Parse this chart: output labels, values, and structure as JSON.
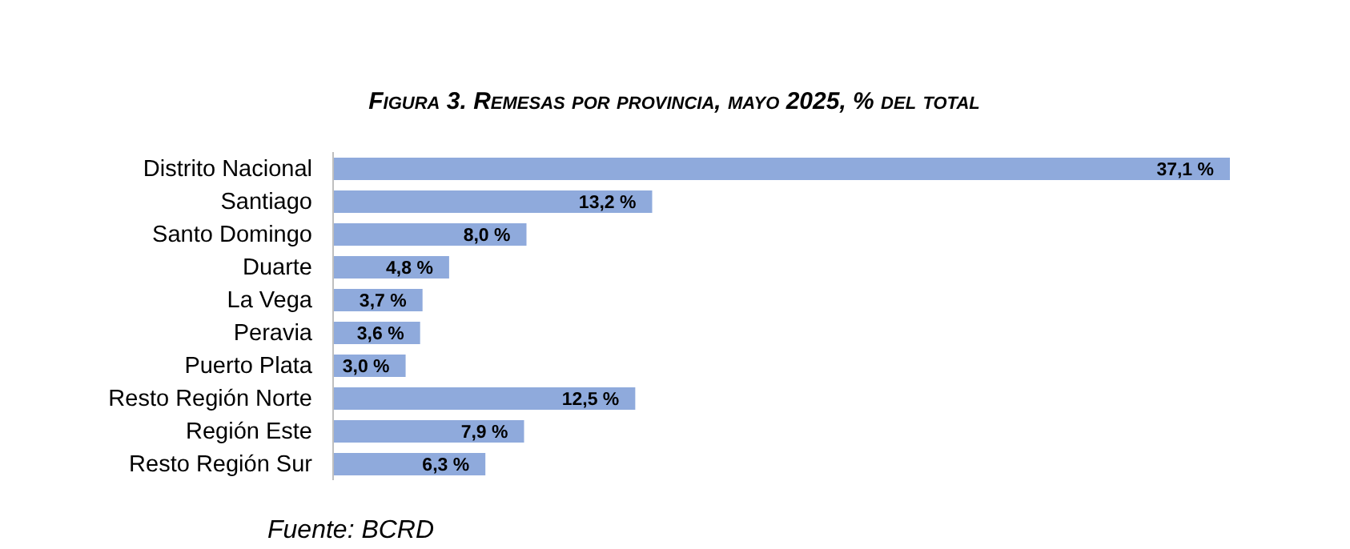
{
  "chart_data": {
    "type": "bar",
    "orientation": "horizontal",
    "relative": false,
    "title": "Figura 3. Remesas por provincia, mayo 2025, % del total",
    "categories": [
      "Distrito Nacional",
      "Santiago",
      "Santo Domingo",
      "Duarte",
      "La Vega",
      "Peravia",
      "Puerto Plata",
      "Resto Región Norte",
      "Región Este",
      "Resto Región Sur"
    ],
    "values": [
      37.1,
      13.2,
      8.0,
      4.8,
      3.7,
      3.6,
      3.0,
      12.5,
      7.9,
      6.3
    ],
    "value_labels": [
      "37,1 %",
      "13,2 %",
      "8,0 %",
      "4,8 %",
      "3,7 %",
      "3,6 %",
      "3,0 %",
      "12,5 %",
      "7,9 %",
      "6,3 %"
    ],
    "color": "#8faadc",
    "tick_labels": "y",
    "annotations": [
      "Fuente: BCRD"
    ]
  }
}
